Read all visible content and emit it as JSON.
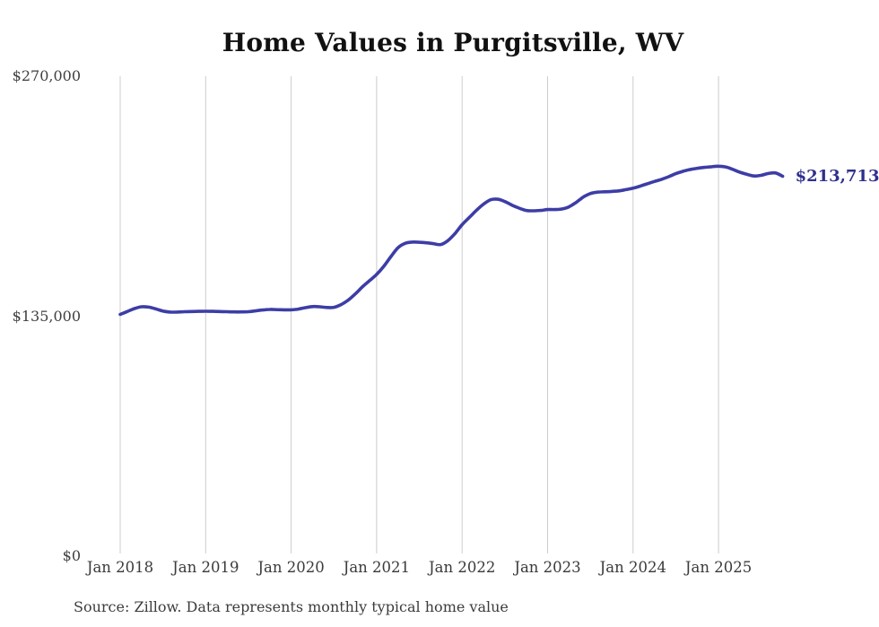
{
  "title": "Home Values in Purgitsville, WV",
  "source_note": "Source: Zillow. Data represents monthly typical home value",
  "end_label": "$213,713",
  "colors": {
    "line": "#3d3da6",
    "end_label_text": "#2f2f8f",
    "gridline": "#cccccc",
    "axis_text": "#3a3a3a",
    "title_text": "#111111",
    "background": "#ffffff"
  },
  "chart_data": {
    "type": "line",
    "title": "Home Values in Purgitsville, WV",
    "xlabel": "",
    "ylabel": "",
    "x_tick_labels": [
      "Jan 2018",
      "Jan 2019",
      "Jan 2020",
      "Jan 2021",
      "Jan 2022",
      "Jan 2023",
      "Jan 2024",
      "Jan 2025"
    ],
    "y_tick_labels": [
      "$270,000",
      "$135,000",
      "$0"
    ],
    "y_tick_values": [
      270000,
      135000,
      0
    ],
    "ylim": [
      0,
      270000
    ],
    "grid": "vertical-only",
    "legend_position": "none",
    "x_start": "Jan 2018",
    "x_frequency": "monthly",
    "x_end": "Oct 2025",
    "end_value": 213713,
    "end_value_label": "$213,713",
    "series": [
      {
        "name": "Typical home value",
        "values": [
          136000,
          137600,
          139300,
          140300,
          140100,
          139100,
          137900,
          137300,
          137300,
          137500,
          137600,
          137700,
          137800,
          137700,
          137600,
          137500,
          137400,
          137400,
          137500,
          138000,
          138500,
          138800,
          138700,
          138600,
          138600,
          139000,
          139800,
          140400,
          140300,
          139900,
          140000,
          141500,
          144000,
          147500,
          151500,
          155000,
          158500,
          163000,
          168500,
          173500,
          176000,
          176700,
          176600,
          176300,
          175800,
          175300,
          177500,
          181500,
          186500,
          190500,
          194500,
          198000,
          200500,
          200800,
          199500,
          197500,
          195800,
          194500,
          194300,
          194500,
          195000,
          195000,
          195300,
          196500,
          199000,
          202000,
          204000,
          204800,
          205000,
          205200,
          205500,
          206200,
          207000,
          208200,
          209500,
          210800,
          212000,
          213500,
          215200,
          216500,
          217500,
          218200,
          218700,
          219100,
          219400,
          219000,
          217600,
          216000,
          214800,
          213900,
          214300,
          215300,
          215600,
          213713
        ]
      }
    ]
  }
}
